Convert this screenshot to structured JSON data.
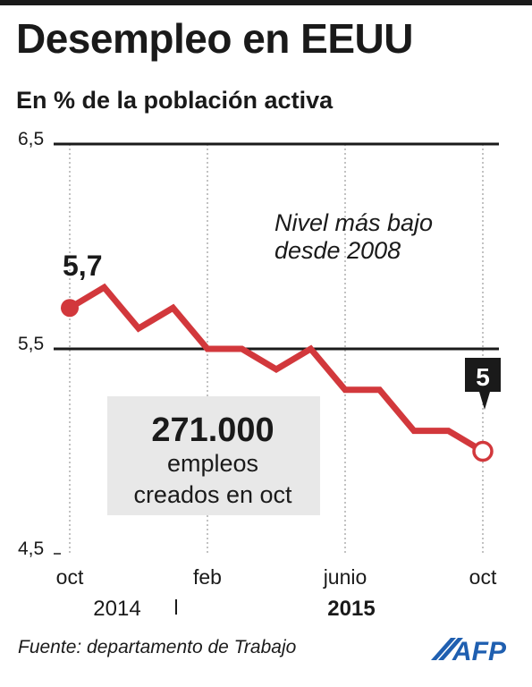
{
  "header": {
    "title": "Desempleo en EEUU",
    "subtitle": "En % de la población activa"
  },
  "footer": {
    "source": "Fuente: departamento de Trabajo",
    "logo": "AFP"
  },
  "colors": {
    "line": "#d2383c",
    "text": "#1a1a1a",
    "callout_box": "#e8e8e8"
  },
  "chart_data": {
    "type": "line",
    "title": "Desempleo en EEUU",
    "subtitle": "En % de la población activa",
    "ylim": [
      4.5,
      6.5
    ],
    "y_ticks": [
      "6,5",
      "5,5",
      "4,5"
    ],
    "y_tick_values": [
      6.5,
      5.5,
      4.5
    ],
    "x_tick_labels": [
      "oct",
      "feb",
      "junio",
      "oct"
    ],
    "x_tick_months": [
      "2014-10",
      "2015-02",
      "2015-06",
      "2015-10"
    ],
    "year_labels": [
      "2014",
      "2015"
    ],
    "grid": "vertical dotted at oct, feb, junio, oct; horizontal solid at 6,5 and 5,5",
    "series": [
      {
        "x": [
          "2014-10",
          "2014-11",
          "2014-12",
          "2015-01",
          "2015-02",
          "2015-03",
          "2015-04",
          "2015-05",
          "2015-06",
          "2015-07",
          "2015-08",
          "2015-09",
          "2015-10"
        ],
        "values": [
          5.7,
          5.8,
          5.6,
          5.7,
          5.5,
          5.5,
          5.4,
          5.5,
          5.3,
          5.3,
          5.1,
          5.1,
          5.0
        ]
      }
    ],
    "labels": {
      "start": "5,7",
      "end": "5"
    },
    "annotation": "Nivel más bajo\ndesde 2008",
    "callout": {
      "number": "271.000",
      "line1": "empleos",
      "line2": "creados en oct"
    }
  }
}
